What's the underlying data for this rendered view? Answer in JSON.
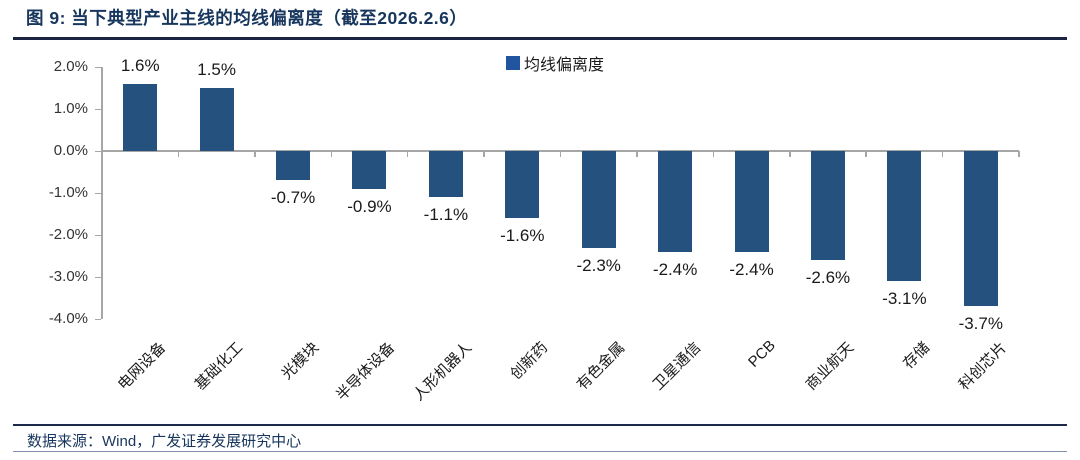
{
  "header": {
    "title": "图 9:  当下典型产业主线的均线偏离度（截至2026.2.6）"
  },
  "legend": {
    "label": "均线偏离度"
  },
  "footer": {
    "source": "数据来源：Wind，广发证券发展研究中心"
  },
  "colors": {
    "bar": "#24517E",
    "legend_swatch": "#2155A0",
    "title": "#17365D",
    "axis": "#A6A6A6",
    "rule": "#1B2440"
  },
  "chart_data": {
    "type": "bar",
    "title": "当下典型产业主线的均线偏离度（截至2026.2.6）",
    "legend": [
      "均线偏离度"
    ],
    "legend_position": "top-center",
    "categories": [
      "电网设备",
      "基础化工",
      "光模块",
      "半导体设备",
      "人形机器人",
      "创新药",
      "有色金属",
      "卫星通信",
      "PCB",
      "商业航天",
      "存储",
      "科创芯片"
    ],
    "series": [
      {
        "name": "均线偏离度",
        "values": [
          1.6,
          1.5,
          -0.7,
          -0.9,
          -1.1,
          -1.6,
          -2.3,
          -2.4,
          -2.4,
          -2.6,
          -3.1,
          -3.7
        ]
      }
    ],
    "data_labels": [
      "1.6%",
      "1.5%",
      "-0.7%",
      "-0.9%",
      "-1.1%",
      "-1.6%",
      "-2.3%",
      "-2.4%",
      "-2.4%",
      "-2.6%",
      "-3.1%",
      "-3.7%"
    ],
    "unit": "%",
    "xlabel": "",
    "ylabel": "",
    "ylim": [
      -4.0,
      2.0
    ],
    "yticks": [
      2.0,
      1.0,
      0.0,
      -1.0,
      -2.0,
      -3.0,
      -4.0
    ],
    "ytick_labels": [
      "2.0%",
      "1.0%",
      "0.0%",
      "-1.0%",
      "-2.0%",
      "-3.0%",
      "-4.0%"
    ],
    "grid": false,
    "bar_color": "#24517E"
  }
}
